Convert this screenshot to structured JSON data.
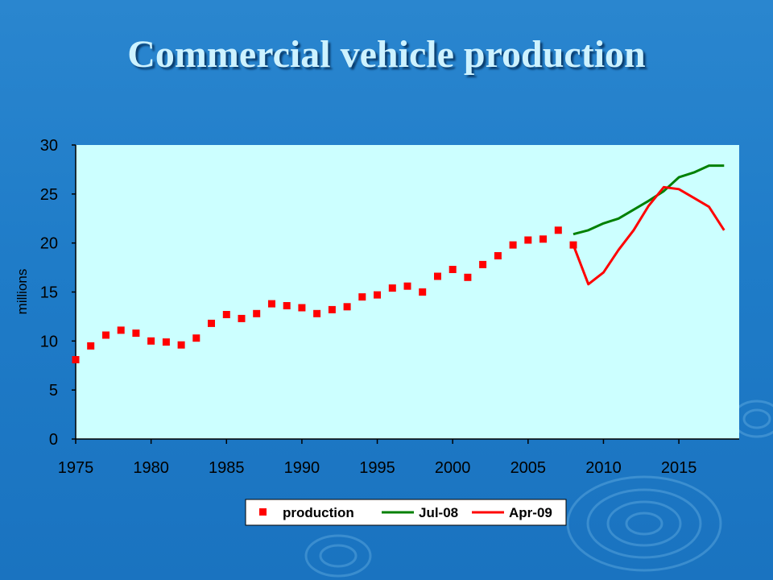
{
  "title": "Commercial vehicle production",
  "chart_data": {
    "type": "line",
    "title": "",
    "xlabel": "",
    "ylabel": "millions",
    "xlim": [
      1975,
      2019
    ],
    "ylim": [
      0,
      30
    ],
    "x_ticks": [
      1975,
      1980,
      1985,
      1990,
      1995,
      2000,
      2005,
      2010,
      2015
    ],
    "y_ticks": [
      0,
      5,
      10,
      15,
      20,
      25,
      30
    ],
    "grid": false,
    "legend_position": "bottom",
    "plot_background": "#ccffff",
    "series": [
      {
        "name": "production",
        "style": "markers",
        "color": "#ff0000",
        "x": [
          1975,
          1976,
          1977,
          1978,
          1979,
          1980,
          1981,
          1982,
          1983,
          1984,
          1985,
          1986,
          1987,
          1988,
          1989,
          1990,
          1991,
          1992,
          1993,
          1994,
          1995,
          1996,
          1997,
          1998,
          1999,
          2000,
          2001,
          2002,
          2003,
          2004,
          2005,
          2006,
          2007,
          2008
        ],
        "y": [
          8.1,
          9.5,
          10.6,
          11.1,
          10.8,
          10.0,
          9.9,
          9.6,
          10.3,
          11.8,
          12.7,
          12.3,
          12.8,
          13.8,
          13.6,
          13.4,
          12.8,
          13.2,
          13.5,
          14.5,
          14.7,
          15.4,
          15.6,
          15.0,
          16.6,
          17.3,
          16.5,
          17.8,
          18.7,
          19.8,
          20.3,
          20.4,
          21.3,
          19.8
        ]
      },
      {
        "name": "Jul-08",
        "style": "line",
        "color": "#008000",
        "x": [
          2008,
          2009,
          2010,
          2011,
          2012,
          2013,
          2014,
          2015,
          2016,
          2017,
          2018
        ],
        "y": [
          20.9,
          21.3,
          22.0,
          22.5,
          23.4,
          24.3,
          25.3,
          26.7,
          27.2,
          27.9,
          27.9
        ]
      },
      {
        "name": "Apr-09",
        "style": "line",
        "color": "#ff0000",
        "x": [
          2008,
          2009,
          2010,
          2011,
          2012,
          2013,
          2014,
          2015,
          2016,
          2017,
          2018
        ],
        "y": [
          19.8,
          15.8,
          17.0,
          19.3,
          21.3,
          23.8,
          25.7,
          25.5,
          24.6,
          23.7,
          21.3
        ]
      }
    ]
  }
}
